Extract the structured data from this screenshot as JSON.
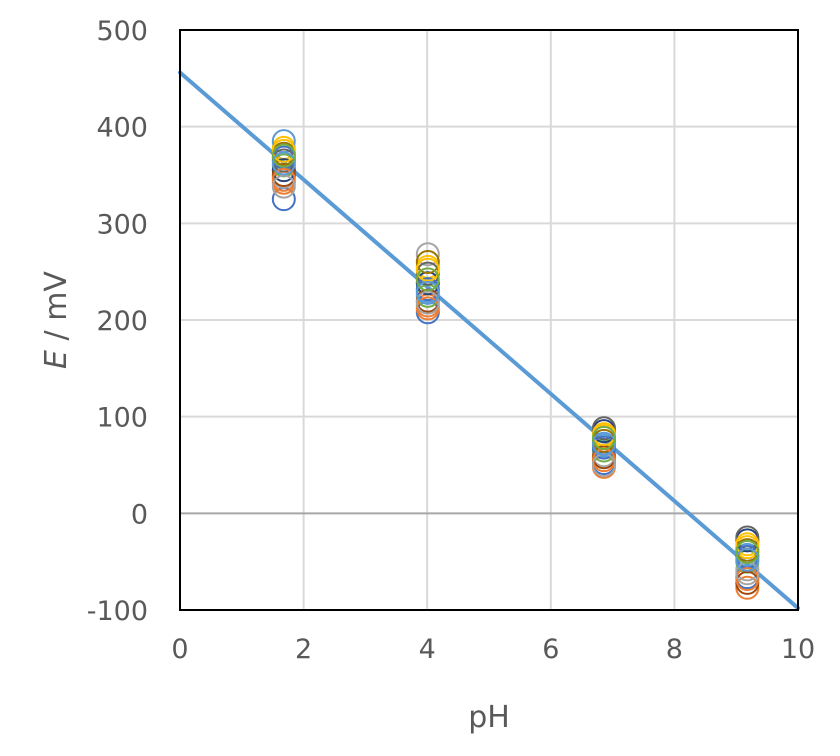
{
  "chart_data": {
    "type": "scatter",
    "title": "",
    "xlabel": "pH",
    "ylabel_italic": "E",
    "ylabel_rest": " / mV",
    "xlim": [
      0,
      10
    ],
    "ylim": [
      -100,
      500
    ],
    "x_ticks": [
      0,
      2,
      4,
      6,
      8,
      10
    ],
    "y_ticks": [
      -100,
      0,
      100,
      200,
      300,
      400,
      500
    ],
    "x_tick_labels": [
      "0",
      "2",
      "4",
      "6",
      "8",
      "10"
    ],
    "y_tick_labels": [
      "-100",
      "0",
      "100",
      "200",
      "300",
      "400",
      "500"
    ],
    "grid": true,
    "legend": "none",
    "line_color": "#5B9BD5",
    "fit_line": {
      "x": [
        0,
        10
      ],
      "y": [
        456,
        -98
      ]
    },
    "palette": [
      "#4472C4",
      "#ED7D31",
      "#A5A5A5",
      "#FFC000",
      "#5B9BD5",
      "#70AD47",
      "#264478",
      "#9E480E",
      "#636363",
      "#997300"
    ],
    "series": [
      {
        "x": [
          1.68,
          4.01,
          6.86,
          9.18
        ],
        "y": [
          325,
          208,
          52,
          -66
        ]
      },
      {
        "x": [
          1.68,
          4.01,
          6.86,
          9.18
        ],
        "y": [
          342,
          215,
          48,
          -77
        ]
      },
      {
        "x": [
          1.68,
          4.01,
          6.86,
          9.18
        ],
        "y": [
          348,
          268,
          60,
          -58
        ]
      },
      {
        "x": [
          1.68,
          4.01,
          6.86,
          9.18
        ],
        "y": [
          378,
          255,
          80,
          -35
        ]
      },
      {
        "x": [
          1.68,
          4.01,
          6.86,
          9.18
        ],
        "y": [
          385,
          230,
          70,
          -43
        ]
      },
      {
        "x": [
          1.68,
          4.01,
          6.86,
          9.18
        ],
        "y": [
          360,
          225,
          65,
          -50
        ]
      },
      {
        "x": [
          1.68,
          4.01,
          6.86,
          9.18
        ],
        "y": [
          355,
          238,
          85,
          -28
        ]
      },
      {
        "x": [
          1.68,
          4.01,
          6.86,
          9.18
        ],
        "y": [
          350,
          220,
          58,
          -72
        ]
      },
      {
        "x": [
          1.68,
          4.01,
          6.86,
          9.18
        ],
        "y": [
          365,
          248,
          88,
          -25
        ]
      },
      {
        "x": [
          1.68,
          4.01,
          6.86,
          9.18
        ],
        "y": [
          372,
          260,
          75,
          -38
        ]
      },
      {
        "x": [
          1.68,
          4.01,
          6.86,
          9.18
        ],
        "y": [
          368,
          232,
          68,
          -45
        ]
      },
      {
        "x": [
          1.68,
          4.01,
          6.86,
          9.18
        ],
        "y": [
          345,
          212,
          55,
          -68
        ]
      },
      {
        "x": [
          1.68,
          4.01,
          6.86,
          9.18
        ],
        "y": [
          338,
          218,
          50,
          -62
        ]
      },
      {
        "x": [
          1.68,
          4.01,
          6.86,
          9.18
        ],
        "y": [
          375,
          252,
          82,
          -32
        ]
      },
      {
        "x": [
          1.68,
          4.01,
          6.86,
          9.18
        ],
        "y": [
          362,
          228,
          72,
          -48
        ]
      },
      {
        "x": [
          1.68,
          4.01,
          6.86,
          9.18
        ],
        "y": [
          370,
          242,
          78,
          -40
        ]
      }
    ]
  }
}
